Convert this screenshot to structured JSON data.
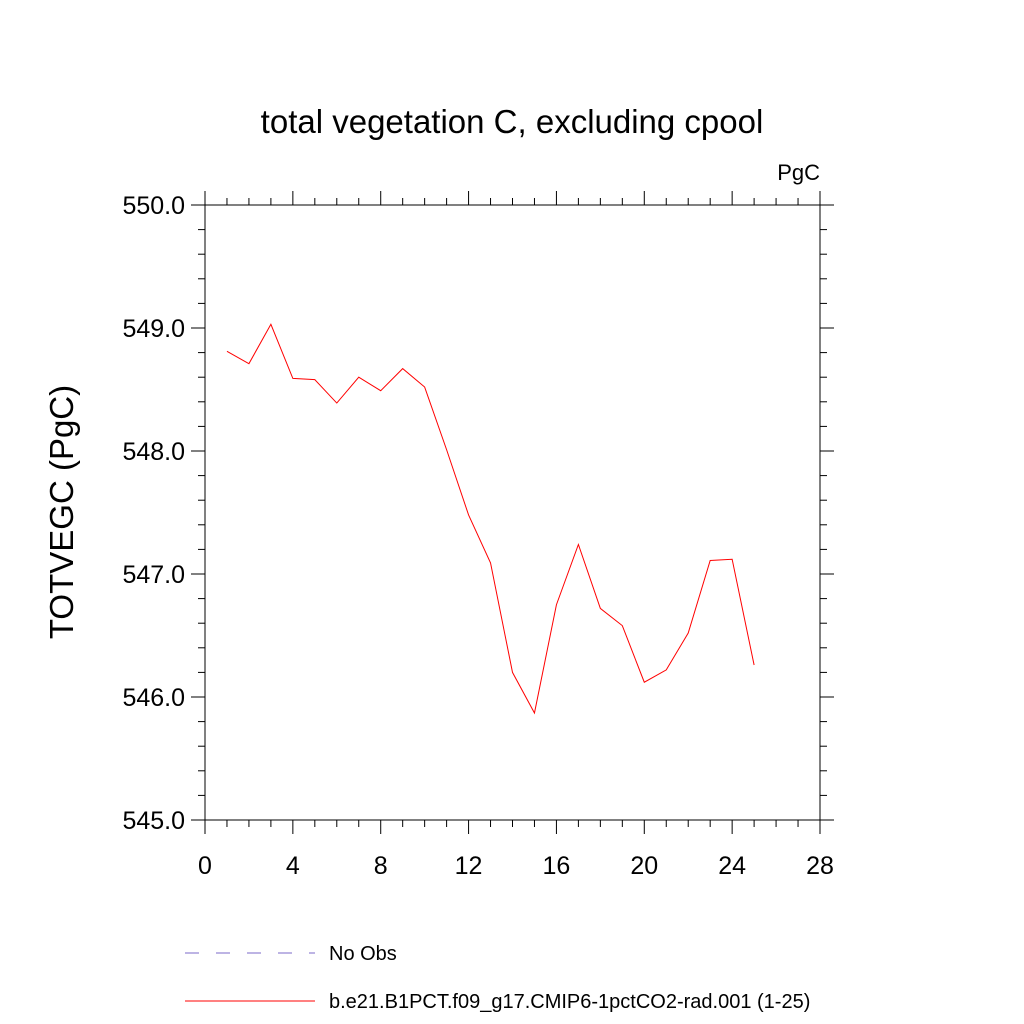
{
  "chart_data": {
    "type": "line",
    "title": "total vegetation C, excluding cpool",
    "units": "PgC",
    "xlabel": "",
    "ylabel": "TOTVEGC  (PgC)",
    "xlim": [
      0,
      28
    ],
    "ylim": [
      545.0,
      550.0
    ],
    "x_ticks": [
      "0",
      "4",
      "8",
      "12",
      "16",
      "20",
      "24",
      "28"
    ],
    "y_ticks": [
      "545.0",
      "546.0",
      "547.0",
      "548.0",
      "549.0",
      "550.0"
    ],
    "grid": false,
    "legend_position": "bottom",
    "series": [
      {
        "name": "No Obs",
        "color": "#7b68c8",
        "style": "dashed",
        "x": [],
        "values": []
      },
      {
        "name": "b.e21.B1PCT.f09_g17.CMIP6-1pctCO2-rad.001 (1-25)",
        "color": "#ff0000",
        "style": "solid",
        "x": [
          1,
          2,
          3,
          4,
          5,
          6,
          7,
          8,
          9,
          10,
          11,
          12,
          13,
          14,
          15,
          16,
          17,
          18,
          19,
          20,
          21,
          22,
          23,
          24,
          25
        ],
        "values": [
          548.81,
          548.71,
          549.03,
          548.59,
          548.58,
          548.39,
          548.6,
          548.49,
          548.67,
          548.52,
          548.01,
          547.48,
          547.09,
          546.2,
          545.87,
          546.75,
          547.24,
          546.72,
          546.58,
          546.12,
          546.22,
          546.52,
          547.11,
          547.12,
          546.26
        ]
      }
    ]
  }
}
